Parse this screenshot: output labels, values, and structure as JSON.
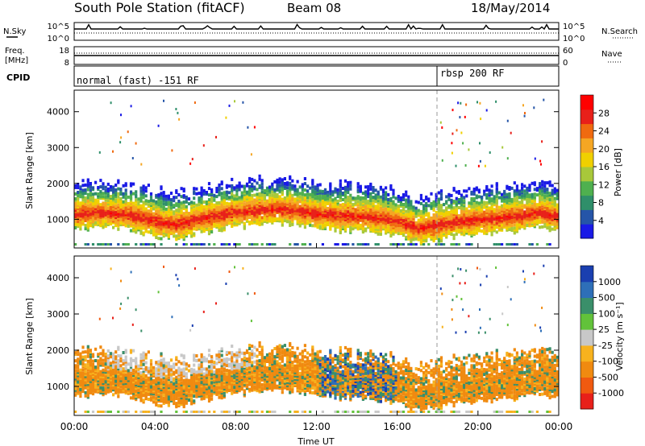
{
  "header": {
    "title": "South Pole Station (fitACF)",
    "beam": "Beam 08",
    "date": "18/May/2014"
  },
  "top_panels": {
    "nsky_label": "N.Sky",
    "nsky_top": "10^5",
    "nsky_bottom": "10^0",
    "nsearch_label": "N.Search",
    "nsearch_top": "10^5",
    "nsearch_bottom": "10^0",
    "freq_label": "Freq.",
    "freq_unit": "[MHz]",
    "freq_top": "18",
    "freq_bottom": "8",
    "nave_label": "Nave",
    "nave_top": "60",
    "nave_bottom": "0",
    "cpid_label": "CPID",
    "cpid_segments": [
      "normal (fast) -151 RF",
      "rbsp 200 RF"
    ]
  },
  "chart_data": [
    {
      "type": "heatmap",
      "panel": "power",
      "ylabel": "Slant Range [km]",
      "ylim": [
        200,
        4600
      ],
      "yticks": [
        "1000",
        "2000",
        "3000",
        "4000"
      ],
      "xlim_hours": [
        0,
        24
      ],
      "colorbar_label": "Power [dB]",
      "colorbar_ticks": [
        "4",
        "8",
        "12",
        "16",
        "20",
        "24",
        "28"
      ],
      "colors": [
        "#1a1ae6",
        "#2555a8",
        "#2f8f6a",
        "#4fb04f",
        "#a8c83a",
        "#f0d000",
        "#f5a623",
        "#f06a10",
        "#e8201a",
        "#ff0000"
      ],
      "echo_band": {
        "times": [
          0.5,
          1,
          2,
          3,
          4,
          5,
          6,
          7,
          8,
          9,
          10,
          11,
          12,
          13,
          14,
          15,
          16,
          17,
          18,
          19,
          20,
          21,
          22,
          23,
          24
        ],
        "center_km": [
          1200,
          1250,
          1200,
          1150,
          1000,
          900,
          1050,
          1150,
          1250,
          1300,
          1350,
          1300,
          1200,
          1150,
          1150,
          1100,
          1000,
          800,
          900,
          1000,
          1050,
          1100,
          1150,
          1250,
          1100
        ]
      }
    },
    {
      "type": "heatmap",
      "panel": "velocity",
      "ylabel": "Slant Range [km]",
      "ylim": [
        200,
        4600
      ],
      "yticks": [
        "1000",
        "2000",
        "3000",
        "4000"
      ],
      "xlabel": "Time UT",
      "xticks": [
        "00:00",
        "04:00",
        "08:00",
        "12:00",
        "16:00",
        "20:00",
        "00:00"
      ],
      "colorbar_label": "Velocity [m s⁻¹]",
      "colorbar_ticks": [
        "1000",
        "500",
        "100",
        "25",
        "-25",
        "-100",
        "-500",
        "-1000"
      ],
      "colors": [
        "#1a3fb0",
        "#2e6fb8",
        "#3a8f6a",
        "#62c23a",
        "#c8c8c8",
        "#f7b21e",
        "#f08a10",
        "#f05a10",
        "#e8201a"
      ]
    }
  ],
  "markers": {
    "mode_change_hour": 18
  }
}
